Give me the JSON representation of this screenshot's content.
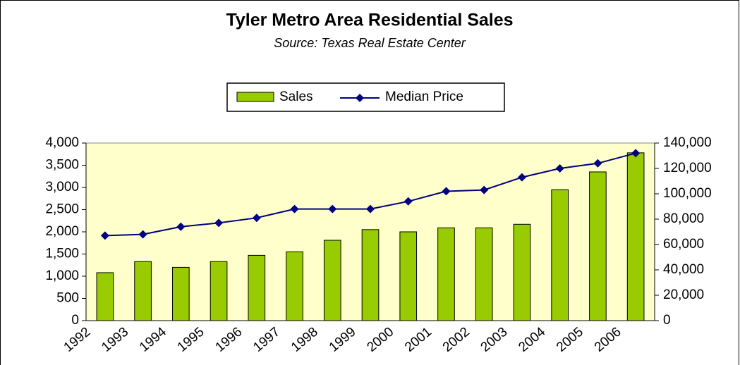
{
  "chart_data": {
    "type": "bar_line",
    "title": "Tyler Metro Area Residential Sales",
    "subtitle": "Source:  Texas Real Estate Center",
    "categories": [
      "1992",
      "1993",
      "1994",
      "1995",
      "1996",
      "1997",
      "1998",
      "1999",
      "2000",
      "2001",
      "2002",
      "2003",
      "2004",
      "2005",
      "2006"
    ],
    "series": [
      {
        "name": "Sales",
        "type": "bar",
        "color": "#99cc00",
        "axis": "y",
        "values": [
          1080,
          1330,
          1200,
          1330,
          1470,
          1550,
          1810,
          2050,
          2000,
          2090,
          2090,
          2170,
          2950,
          3350,
          3780
        ]
      },
      {
        "name": "Median Price",
        "type": "line",
        "color": "#000080",
        "axis": "y2",
        "values": [
          67000,
          68000,
          74000,
          77000,
          81000,
          88000,
          88000,
          88000,
          94000,
          102000,
          103000,
          113000,
          120000,
          124000,
          132000
        ]
      }
    ],
    "ylim": [
      0,
      4000
    ],
    "yticks": [
      0,
      500,
      {
        "value": 1000,
        "label": "1,000"
      },
      {
        "value": 1500,
        "label": "1,500"
      },
      {
        "value": 2000,
        "label": "2,000"
      },
      {
        "value": 2500,
        "label": "2,500"
      },
      {
        "value": 3000,
        "label": "3,000"
      },
      {
        "value": 3500,
        "label": "3,500"
      },
      {
        "value": 4000,
        "label": "4,000"
      }
    ],
    "y2lim": [
      0,
      140000
    ],
    "y2ticks": [
      0,
      {
        "value": 20000,
        "label": "20,000"
      },
      {
        "value": 40000,
        "label": "40,000"
      },
      {
        "value": 60000,
        "label": "60,000"
      },
      {
        "value": 80000,
        "label": "80,000"
      },
      {
        "value": 100000,
        "label": "100,000"
      },
      {
        "value": 120000,
        "label": "120,000"
      },
      {
        "value": 140000,
        "label": "140,000"
      }
    ],
    "legend": "top"
  }
}
